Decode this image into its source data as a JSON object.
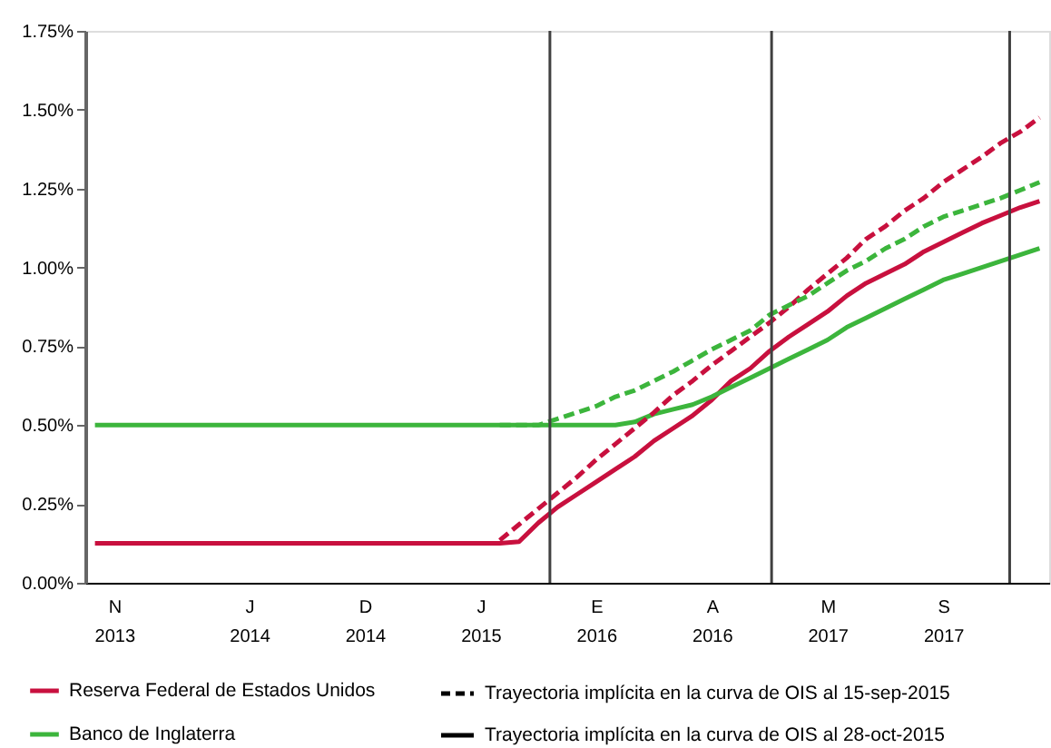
{
  "chart_data": {
    "type": "line",
    "ylim": [
      0,
      1.75
    ],
    "categories": [
      null,
      "N\n2013",
      null,
      null,
      null,
      null,
      null,
      null,
      "J\n2014",
      null,
      null,
      null,
      null,
      null,
      "D\n2014",
      null,
      null,
      null,
      null,
      null,
      "J\n2015",
      null,
      null,
      null,
      null,
      null,
      "E\n2016",
      null,
      null,
      null,
      null,
      null,
      "A\n2016",
      null,
      null,
      null,
      null,
      null,
      "M\n2017",
      null,
      null,
      null,
      null,
      null,
      "S\n2017",
      null,
      null,
      null,
      null,
      null
    ],
    "yticks": [
      {
        "value": 0,
        "label": "0.00%"
      },
      {
        "value": 0.25,
        "label": "0.25%"
      },
      {
        "value": 0.5,
        "label": "0.50%"
      },
      {
        "value": 0.75,
        "label": "0.75%"
      },
      {
        "value": 1.0,
        "label": "1.00%"
      },
      {
        "value": 1.25,
        "label": "1.25%"
      },
      {
        "value": 1.5,
        "label": "1.50%"
      },
      {
        "value": 1.75,
        "label": "1.75%"
      }
    ],
    "legend": "bottom",
    "annotations": [
      "Trayectoria implícita en la curva de OIS al 15-sep-2015",
      "Trayectoria implícita en la curva de OIS al 28-oct-2015"
    ],
    "series": [
      {
        "name": "Reserva Federal de Estados Unidos",
        "color": "#c8103e",
        "line_style": "solid",
        "values": [
          0.125,
          0.125,
          0.125,
          0.125,
          0.125,
          0.125,
          0.125,
          0.125,
          0.125,
          0.125,
          0.125,
          0.125,
          0.125,
          0.125,
          0.125,
          0.125,
          0.125,
          0.125,
          0.125,
          0.125,
          0.125,
          0.125,
          0.13,
          0.19,
          0.24,
          0.28,
          0.32,
          0.36,
          0.4,
          0.45,
          0.49,
          0.53,
          0.58,
          0.64,
          0.68,
          0.735,
          0.78,
          0.82,
          0.86,
          0.91,
          0.95,
          0.98,
          1.01,
          1.05,
          1.08,
          1.11,
          1.14,
          1.165,
          1.19,
          1.21
        ]
      },
      {
        "name": "Banco de Inglaterra",
        "color": "#3cb53c",
        "line_style": "solid",
        "values": [
          0.5,
          0.5,
          0.5,
          0.5,
          0.5,
          0.5,
          0.5,
          0.5,
          0.5,
          0.5,
          0.5,
          0.5,
          0.5,
          0.5,
          0.5,
          0.5,
          0.5,
          0.5,
          0.5,
          0.5,
          0.5,
          0.5,
          0.5,
          0.5,
          0.5,
          0.5,
          0.5,
          0.5,
          0.51,
          0.535,
          0.55,
          0.565,
          0.59,
          0.62,
          0.65,
          0.68,
          0.71,
          0.74,
          0.77,
          0.81,
          0.84,
          0.87,
          0.9,
          0.93,
          0.96,
          0.98,
          1.0,
          1.02,
          1.04,
          1.06
        ]
      },
      {
        "color": "#c8103e",
        "line_style": "dashed",
        "values": [
          null,
          null,
          null,
          null,
          null,
          null,
          null,
          null,
          null,
          null,
          null,
          null,
          null,
          null,
          null,
          null,
          null,
          null,
          null,
          null,
          null,
          0.135,
          0.185,
          0.235,
          0.285,
          0.335,
          0.39,
          0.44,
          0.49,
          0.54,
          0.595,
          0.64,
          0.69,
          0.735,
          0.78,
          0.825,
          0.875,
          0.93,
          0.98,
          1.03,
          1.09,
          1.13,
          1.18,
          1.22,
          1.27,
          1.31,
          1.35,
          1.395,
          1.43,
          1.475
        ]
      },
      {
        "color": "#3cb53c",
        "line_style": "dashed",
        "values": [
          null,
          null,
          null,
          null,
          null,
          null,
          null,
          null,
          null,
          null,
          null,
          null,
          null,
          null,
          null,
          null,
          null,
          null,
          null,
          null,
          null,
          0.5,
          0.5,
          0.5,
          0.52,
          0.54,
          0.56,
          0.59,
          0.61,
          0.64,
          0.67,
          0.705,
          0.74,
          0.77,
          0.8,
          0.85,
          0.88,
          0.91,
          0.95,
          0.99,
          1.02,
          1.06,
          1.09,
          1.13,
          1.16,
          1.18,
          1.2,
          1.22,
          1.245,
          1.27
        ]
      }
    ]
  }
}
